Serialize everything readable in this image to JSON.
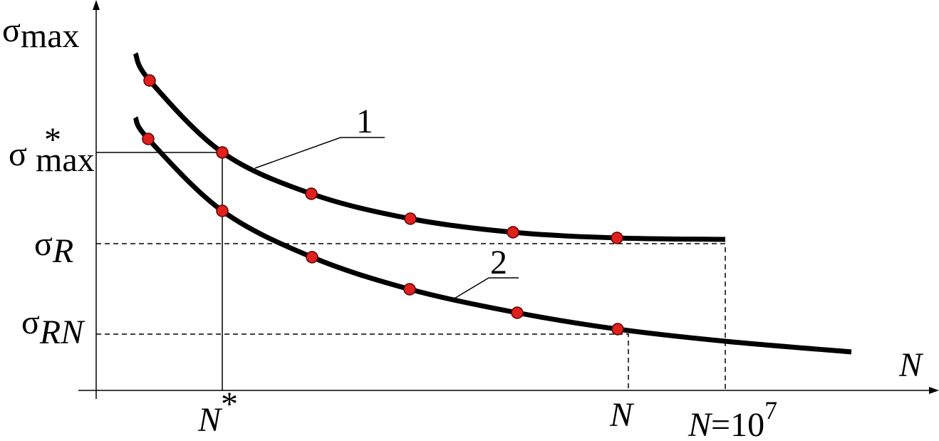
{
  "axes": {
    "y_label": {
      "base": "σ",
      "sub": "max"
    },
    "x_label": "N"
  },
  "levels": [
    {
      "base": "σ",
      "sub": "max",
      "sup": "*"
    },
    {
      "base": "σ",
      "sub": "R"
    },
    {
      "base": "σ",
      "sub": "RN"
    }
  ],
  "cycles": [
    {
      "base": "N",
      "sup": "*"
    },
    {
      "base": "N"
    },
    {
      "base": "N",
      "rest": "=10",
      "sup": "7"
    }
  ],
  "curves": [
    {
      "label": "1"
    },
    {
      "label": "2"
    }
  ]
}
